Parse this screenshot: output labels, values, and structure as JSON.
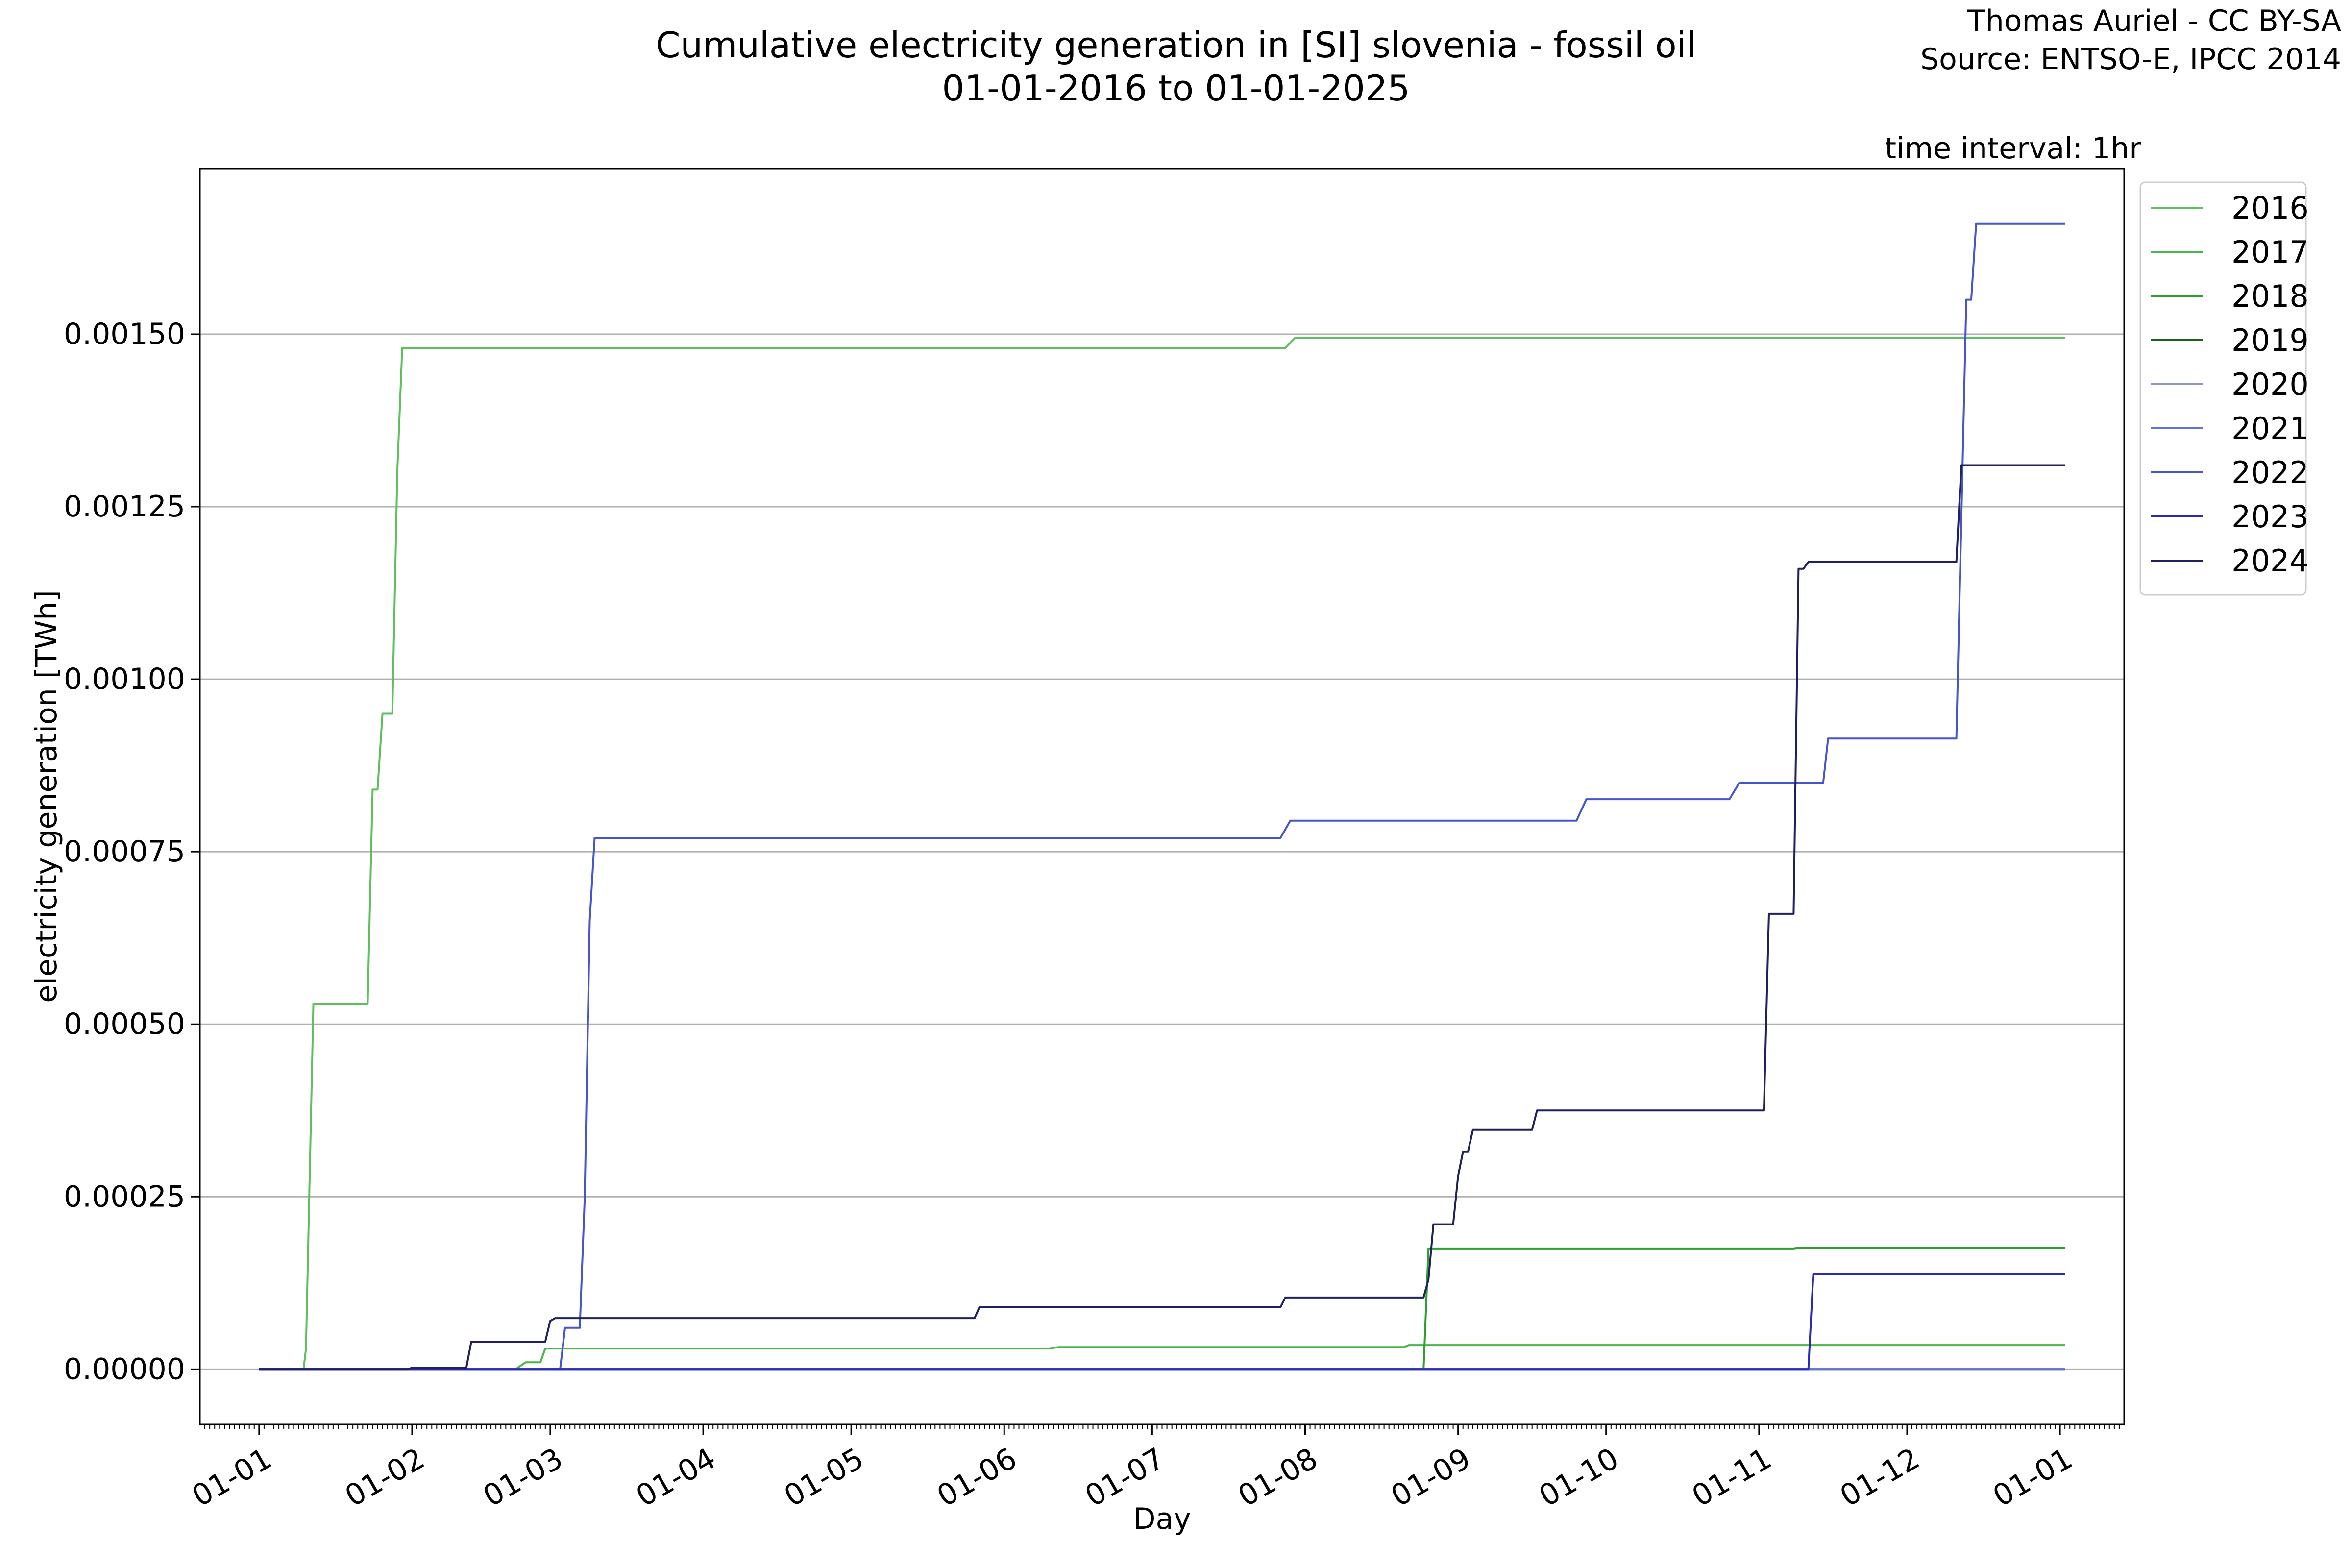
{
  "header": {
    "title_line1": "Cumulative electricity generation in [SI] slovenia - fossil oil",
    "title_line2": "01-01-2016 to 01-01-2025",
    "credit_line1": "Thomas Auriel - CC BY-SA",
    "credit_line2": "Source: ENTSO-E, IPCC 2014",
    "interval": "time interval: 1hr"
  },
  "chart_data": {
    "type": "line",
    "title": "Cumulative electricity generation in [SI] slovenia - fossil oil\n01-01-2016 to 01-01-2025",
    "xlabel": "Day",
    "ylabel": "electricity generation [TWh]",
    "x_unit": "day of year",
    "xlim": [
      -12,
      378
    ],
    "ylim": [
      -8e-05,
      0.00174
    ],
    "x_ticks": [
      {
        "day": 0,
        "label": "01-01"
      },
      {
        "day": 31,
        "label": "01-02"
      },
      {
        "day": 59,
        "label": "01-03"
      },
      {
        "day": 90,
        "label": "01-04"
      },
      {
        "day": 120,
        "label": "01-05"
      },
      {
        "day": 151,
        "label": "01-06"
      },
      {
        "day": 181,
        "label": "01-07"
      },
      {
        "day": 212,
        "label": "01-08"
      },
      {
        "day": 243,
        "label": "01-09"
      },
      {
        "day": 273,
        "label": "01-10"
      },
      {
        "day": 304,
        "label": "01-11"
      },
      {
        "day": 334,
        "label": "01-12"
      },
      {
        "day": 365,
        "label": "01-01"
      }
    ],
    "y_ticks": [
      {
        "value": 0,
        "label": "0.00000"
      },
      {
        "value": 0.00025,
        "label": "0.00025"
      },
      {
        "value": 0.0005,
        "label": "0.00050"
      },
      {
        "value": 0.00075,
        "label": "0.00075"
      },
      {
        "value": 0.001,
        "label": "0.00100"
      },
      {
        "value": 0.00125,
        "label": "0.00125"
      },
      {
        "value": 0.0015,
        "label": "0.00150"
      }
    ],
    "grid": "horizontal",
    "legend_position": "outside-right-top",
    "series": [
      {
        "name": "2016",
        "color": "#5fbf5f",
        "points": [
          [
            0,
            0
          ],
          [
            9,
            0
          ],
          [
            9.5,
            3e-05
          ],
          [
            11,
            0.00053
          ],
          [
            22,
            0.00053
          ],
          [
            23,
            0.00084
          ],
          [
            24,
            0.00084
          ],
          [
            25,
            0.00095
          ],
          [
            27,
            0.00095
          ],
          [
            28,
            0.0013
          ],
          [
            29,
            0.00148
          ],
          [
            208,
            0.00148
          ],
          [
            210,
            0.001495
          ],
          [
            366,
            0.001495
          ]
        ]
      },
      {
        "name": "2017",
        "color": "#4db34d",
        "points": [
          [
            0,
            0
          ],
          [
            52,
            0
          ],
          [
            54,
            1e-05
          ],
          [
            57,
            1e-05
          ],
          [
            58,
            3e-05
          ],
          [
            160,
            3e-05
          ],
          [
            162,
            3.2e-05
          ],
          [
            232,
            3.2e-05
          ],
          [
            233,
            3.5e-05
          ],
          [
            366,
            3.5e-05
          ]
        ]
      },
      {
        "name": "2018",
        "color": "#2e9e2e",
        "points": [
          [
            0,
            0
          ],
          [
            236,
            0
          ],
          [
            237,
            0.000175
          ],
          [
            311,
            0.000175
          ],
          [
            312,
            0.000176
          ],
          [
            366,
            0.000176
          ]
        ]
      },
      {
        "name": "2019",
        "color": "#1e5e1e",
        "points": [
          [
            0,
            0
          ],
          [
            366,
            0
          ]
        ]
      },
      {
        "name": "2020",
        "color": "#8c96c8",
        "points": [
          [
            0,
            0
          ],
          [
            366,
            0
          ]
        ]
      },
      {
        "name": "2021",
        "color": "#6470dc",
        "points": [
          [
            0,
            0
          ],
          [
            366,
            0
          ]
        ]
      },
      {
        "name": "2022",
        "color": "#4655c8",
        "points": [
          [
            0,
            0
          ],
          [
            61,
            0
          ],
          [
            62,
            6e-05
          ],
          [
            65,
            6e-05
          ],
          [
            66,
            0.00025
          ],
          [
            67,
            0.00065
          ],
          [
            68,
            0.00077
          ],
          [
            207,
            0.00077
          ],
          [
            209,
            0.000795
          ],
          [
            267,
            0.000795
          ],
          [
            269,
            0.000826
          ],
          [
            298,
            0.000826
          ],
          [
            300,
            0.00085
          ],
          [
            317,
            0.00085
          ],
          [
            318,
            0.000914
          ],
          [
            344,
            0.000914
          ],
          [
            346,
            0.00155
          ],
          [
            347,
            0.00155
          ],
          [
            348,
            0.00166
          ],
          [
            366,
            0.00166
          ]
        ]
      },
      {
        "name": "2023",
        "color": "#2a2ab4",
        "points": [
          [
            0,
            0
          ],
          [
            314,
            0
          ],
          [
            315,
            0.000138
          ],
          [
            366,
            0.000138
          ]
        ]
      },
      {
        "name": "2024",
        "color": "#20205e",
        "points": [
          [
            0,
            0
          ],
          [
            30,
            0
          ],
          [
            31,
            2e-06
          ],
          [
            42,
            2e-06
          ],
          [
            43,
            4e-05
          ],
          [
            58,
            4e-05
          ],
          [
            59,
            7e-05
          ],
          [
            60,
            7.4e-05
          ],
          [
            145,
            7.4e-05
          ],
          [
            146,
            9e-05
          ],
          [
            207,
            9e-05
          ],
          [
            208,
            0.000104
          ],
          [
            236,
            0.000104
          ],
          [
            237,
            0.00013
          ],
          [
            238,
            0.00021
          ],
          [
            242,
            0.00021
          ],
          [
            243,
            0.00028
          ],
          [
            244,
            0.000315
          ],
          [
            245,
            0.000315
          ],
          [
            246,
            0.000347
          ],
          [
            258,
            0.000347
          ],
          [
            259,
            0.000375
          ],
          [
            305,
            0.000375
          ],
          [
            306,
            0.00066
          ],
          [
            311,
            0.00066
          ],
          [
            312,
            0.00116
          ],
          [
            313,
            0.00116
          ],
          [
            314,
            0.00117
          ],
          [
            344,
            0.00117
          ],
          [
            345,
            0.00131
          ],
          [
            366,
            0.00131
          ]
        ]
      }
    ]
  }
}
